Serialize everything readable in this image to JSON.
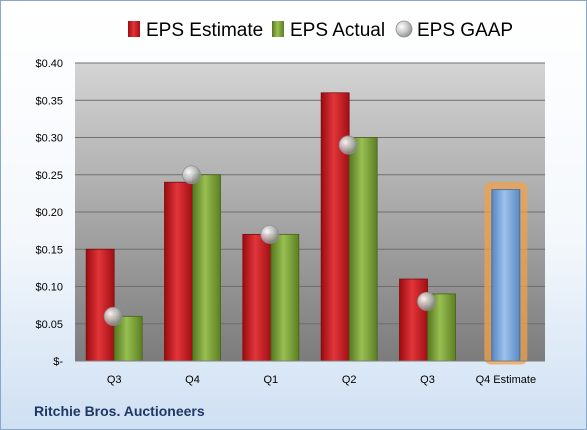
{
  "company_name": "Ritchie Bros. Auctioneers",
  "chart_data": {
    "type": "bar",
    "categories": [
      "Q3",
      "Q4",
      "Q1",
      "Q2",
      "Q3",
      "Q4 Estimate"
    ],
    "series": [
      {
        "name": "EPS Estimate",
        "color": "#c0151b",
        "values": [
          0.15,
          0.24,
          0.17,
          0.36,
          0.11,
          null
        ]
      },
      {
        "name": "EPS Actual",
        "color": "#6a8d2a",
        "values": [
          0.06,
          0.25,
          0.17,
          0.3,
          0.09,
          null
        ]
      },
      {
        "name": "EPS GAAP",
        "color": "#b9b9b9",
        "marker": "circle",
        "values": [
          0.06,
          0.25,
          0.17,
          0.29,
          0.08,
          null
        ]
      }
    ],
    "estimate_bar": {
      "category": "Q4 Estimate",
      "value": 0.23,
      "color": "#6fa0d8",
      "highlight": "#f0a04b"
    },
    "y_ticks": [
      "$-",
      "$0.05",
      "$0.10",
      "$0.15",
      "$0.20",
      "$0.25",
      "$0.30",
      "$0.35",
      "$0.40"
    ],
    "ylim": [
      0,
      0.4
    ],
    "grid": true,
    "legend_position": "top"
  }
}
